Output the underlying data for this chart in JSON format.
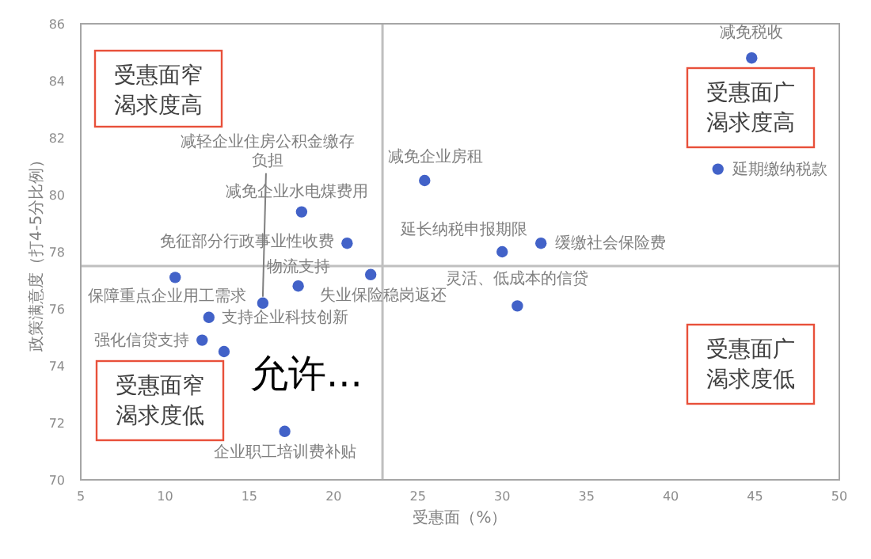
{
  "chart_data": {
    "type": "scatter",
    "xlabel": "受惠面（%）",
    "ylabel": "政策满意度（打4-5分比例）",
    "x": [
      44.8,
      42.8,
      25.4,
      30.0,
      32.3,
      30.9,
      18.1,
      20.8,
      15.8,
      17.9,
      22.2,
      10.6,
      12.6,
      12.2,
      13.5,
      17.1
    ],
    "values": [
      84.8,
      80.9,
      80.5,
      78.0,
      78.3,
      76.1,
      79.4,
      78.3,
      76.2,
      76.8,
      77.2,
      77.1,
      75.7,
      74.9,
      74.5,
      71.7
    ],
    "color": "#4262c8",
    "marker": "circle",
    "xlim": [
      5,
      50
    ],
    "ylim": [
      70,
      86
    ],
    "xticks": [
      5,
      10,
      15,
      20,
      25,
      30,
      35,
      40,
      45,
      50
    ],
    "yticks": [
      70,
      72,
      74,
      76,
      78,
      80,
      82,
      84,
      86
    ],
    "grid": false,
    "ref_lines": [
      {
        "axis": "x",
        "value": 22.9,
        "color": "#bfbfbf"
      },
      {
        "axis": "y",
        "value": 77.5,
        "color": "#bfbfbf"
      }
    ],
    "annotations": [
      {
        "text": "减免税收",
        "x": 44.8,
        "y": 84.8
      },
      {
        "text": "延期缴纳税款",
        "x": 42.8,
        "y": 80.9
      },
      {
        "text": "减免企业房租",
        "x": 25.4,
        "y": 80.5
      },
      {
        "text": "延长纳税申报期限",
        "x": 30.0,
        "y": 78.0
      },
      {
        "text": "缓缴社会保险费",
        "x": 32.3,
        "y": 78.3
      },
      {
        "text": "灵活、低成本的信贷",
        "x": 30.9,
        "y": 76.1
      },
      {
        "text": "减免企业水电煤费用",
        "x": 18.1,
        "y": 79.4
      },
      {
        "text": "免征部分行政事业性收费",
        "x": 20.8,
        "y": 78.3
      },
      {
        "text": "减轻企业住房公积金缴存负担",
        "x": 15.8,
        "y": 76.2
      },
      {
        "text": "物流支持",
        "x": 17.9,
        "y": 76.8
      },
      {
        "text": "失业保险稳岗返还",
        "x": 22.2,
        "y": 77.2
      },
      {
        "text": "保障重点企业用工需求",
        "x": 10.6,
        "y": 77.1
      },
      {
        "text": "支持企业科技创新",
        "x": 12.6,
        "y": 75.7
      },
      {
        "text": "强化信贷支持",
        "x": 12.2,
        "y": 74.9
      },
      {
        "text": "企业职工培训费补贴",
        "x": 17.1,
        "y": 71.7
      },
      "受惠面窄渴求度高",
      "受惠面广渴求度高",
      "受惠面窄渴求度低",
      "受惠面广渴求度低",
      "允许..."
    ]
  }
}
